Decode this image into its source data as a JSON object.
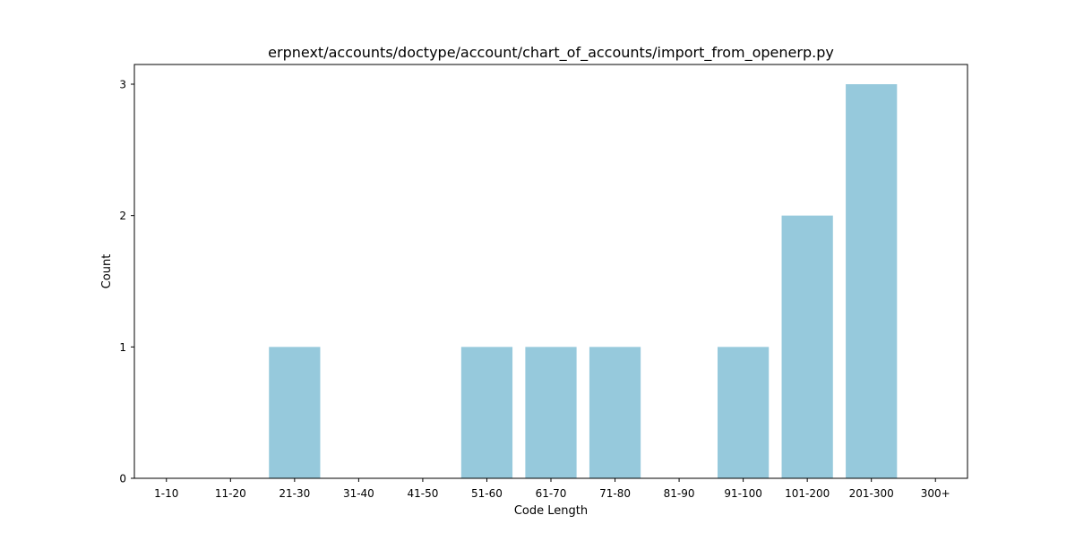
{
  "chart_data": {
    "type": "bar",
    "title": "erpnext/accounts/doctype/account/chart_of_accounts/import_from_openerp.py",
    "xlabel": "Code Length",
    "ylabel": "Count",
    "categories": [
      "1-10",
      "11-20",
      "21-30",
      "31-40",
      "41-50",
      "51-60",
      "61-70",
      "71-80",
      "81-90",
      "91-100",
      "101-200",
      "201-300",
      "300+"
    ],
    "values": [
      0,
      0,
      1,
      0,
      0,
      1,
      1,
      1,
      0,
      1,
      2,
      3,
      0
    ],
    "ylim": [
      0,
      3.15
    ],
    "yticks": [
      0,
      1,
      2,
      3
    ],
    "bar_color": "#96c9dc",
    "grid": false,
    "legend": "none"
  }
}
